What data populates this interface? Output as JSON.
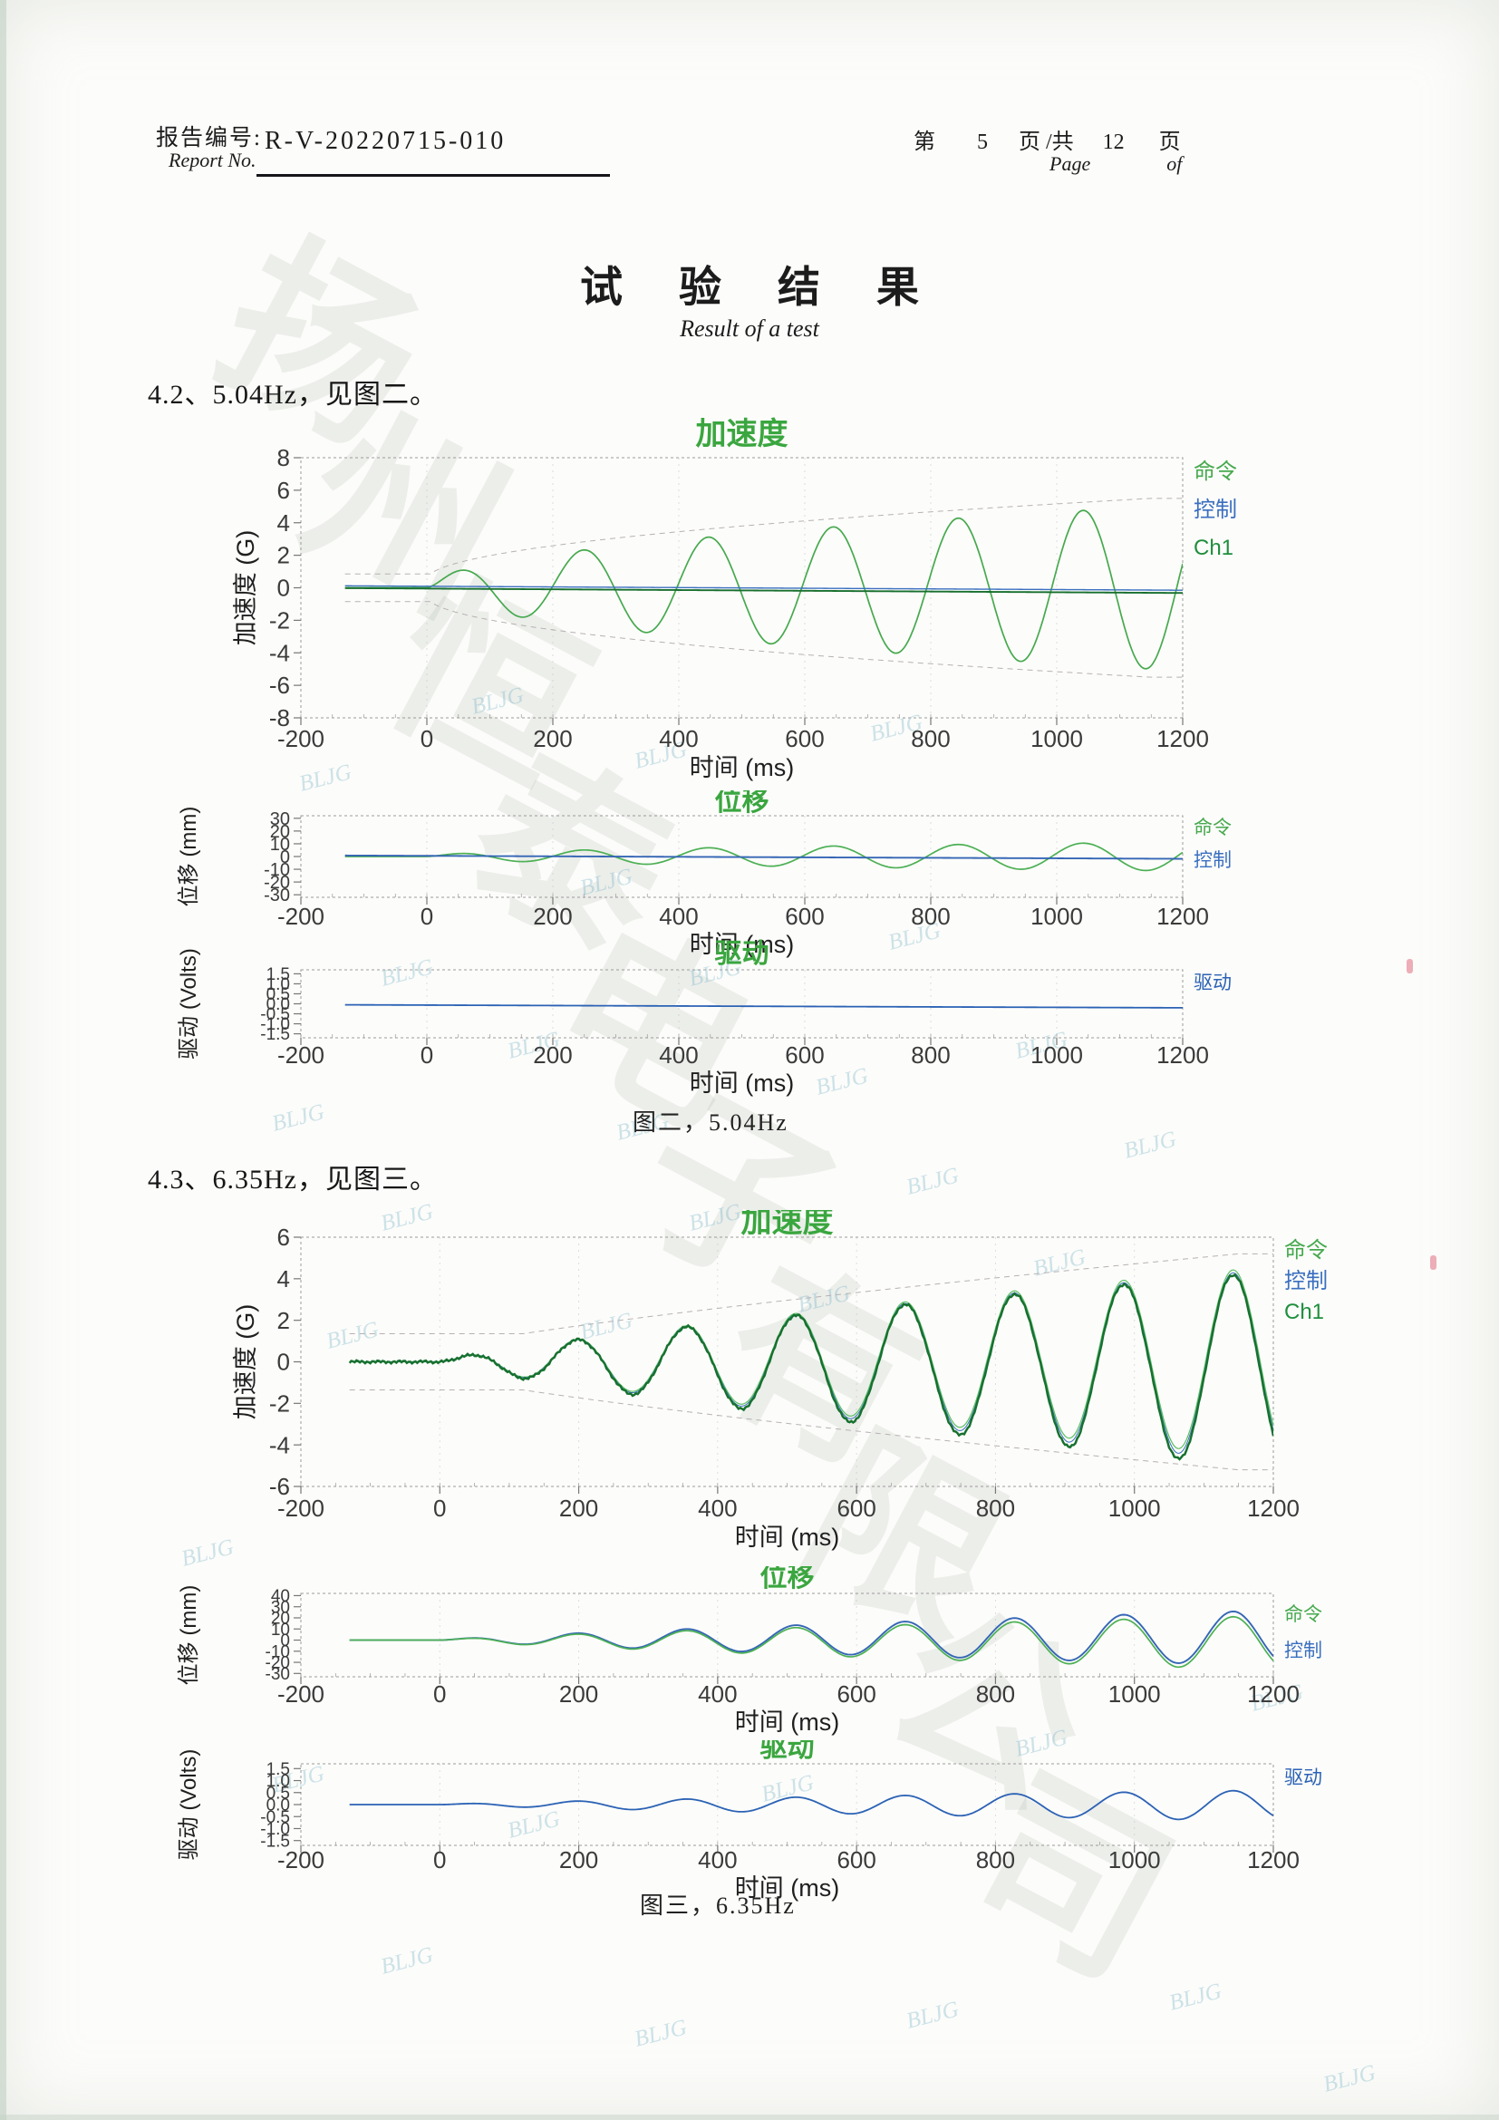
{
  "header": {
    "report_label_zh": "报告编号:",
    "report_label_en": "Report No.",
    "report_no": "R-V-20220715-010",
    "page_prefix": "第",
    "page_num": "5",
    "page_mid": "页 /共",
    "page_total": "12",
    "page_suffix": "页",
    "page_en_left": "Page",
    "page_en_right": "of"
  },
  "title": {
    "zh": "试验结果",
    "en": "Result of a test"
  },
  "sections": [
    {
      "text": "4.2、5.04Hz，见图二。"
    },
    {
      "text": "4.3、6.35Hz，见图三。"
    }
  ],
  "colors": {
    "title_green": "#3aa63f",
    "command_green": "#46a94e",
    "control_blue": "#3a6fc0",
    "ch1_green": "#1f8f3d",
    "drive_blue": "#2b62b5",
    "envelope_gray": "#b7b1b3",
    "axis_gray": "#9b9b9b",
    "tick_text": "#3b3b3b"
  },
  "watermark": {
    "company": "扬州恒泰电子有限公司",
    "stamp": "BLJG"
  },
  "figures": [
    {
      "caption": "图二，5.04Hz",
      "charts": [
        {
          "type": "line",
          "title": "加速度",
          "ylabel": "加速度 (G)",
          "xlabel": "时间 (ms)",
          "xlim": [
            -200,
            1200
          ],
          "ylim": [
            -8,
            8
          ],
          "xticks": [
            -200,
            0,
            200,
            400,
            600,
            800,
            1000,
            1200
          ],
          "yticks": [
            8,
            6,
            4,
            2,
            0,
            -2,
            -4,
            -6,
            -8
          ],
          "ytick_labels": [
            "8",
            "6",
            "4",
            "2",
            "0",
            "-2",
            "-4",
            "-6",
            "-8"
          ],
          "legend": [
            {
              "label": "命令",
              "color": "#46a94e"
            },
            {
              "label": "控制",
              "color": "#3a6fc0"
            },
            {
              "label": "Ch1",
              "color": "#1f8f3d"
            }
          ],
          "series": [
            {
              "name": "tolerance-upper",
              "color": "#b7b1b3",
              "width": 1,
              "dash": "6 5",
              "wave": {
                "kind": "env",
                "sign": 1,
                "min_amp": 0.85,
                "pad": 0.5,
                "amp_end": 5,
                "pow": 0.5,
                "freq": 5.04
              }
            },
            {
              "name": "tolerance-lower",
              "color": "#b7b1b3",
              "width": 1,
              "dash": "6 5",
              "wave": {
                "kind": "env",
                "sign": -1,
                "min_amp": 0.85,
                "pad": 0.5,
                "amp_end": 5,
                "pow": 0.5,
                "freq": 5.04
              }
            },
            {
              "name": "命令",
              "color": "#46a94e",
              "width": 1.7,
              "wave": {
                "kind": "sine",
                "freq": 5.04,
                "amp_end": 5.0,
                "pow": 0.5
              }
            },
            {
              "name": "控制",
              "color": "#3a6fc0",
              "width": 1.4,
              "wave": {
                "kind": "flat",
                "v0": 0.12,
                "v1": -0.15
              }
            },
            {
              "name": "Ch1",
              "color": "#176f2e",
              "width": 1.9,
              "wave": {
                "kind": "flat",
                "v0": -0.02,
                "v1": -0.32
              }
            }
          ]
        },
        {
          "type": "line",
          "title": "位移",
          "ylabel": "位移 (mm)",
          "xlabel": "时间 (ms)",
          "xlim": [
            -200,
            1200
          ],
          "ylim": [
            -32,
            32
          ],
          "xticks": [
            -200,
            0,
            200,
            400,
            600,
            800,
            1000,
            1200
          ],
          "yticks": [
            30,
            20,
            10,
            0,
            -10,
            -20,
            -30
          ],
          "ytick_labels": [
            "30",
            "20",
            "10",
            "0",
            "-10",
            "-20",
            "-30"
          ],
          "legend": [
            {
              "label": "命令",
              "color": "#46a94e"
            },
            {
              "label": "控制",
              "color": "#3a6fc0"
            }
          ],
          "series": [
            {
              "name": "命令",
              "color": "#4cb054",
              "width": 1.7,
              "wave": {
                "kind": "sine",
                "freq": 5.04,
                "amp_end": 11,
                "pow": 0.5
              }
            },
            {
              "name": "控制",
              "color": "#3566b5",
              "width": 1.9,
              "wave": {
                "kind": "flat",
                "v0": 0.8,
                "v1": -1.8
              }
            }
          ]
        },
        {
          "type": "line",
          "title": "驱动",
          "ylabel": "驱动 (Volts)",
          "xlabel": "时间 (ms)",
          "xlim": [
            -200,
            1200
          ],
          "ylim": [
            -1.7,
            1.7
          ],
          "xticks": [
            -200,
            0,
            200,
            400,
            600,
            800,
            1000,
            1200
          ],
          "yticks": [
            1.5,
            1.0,
            0.5,
            0.0,
            -0.5,
            -1.0,
            -1.5
          ],
          "ytick_labels": [
            "1.5",
            "1.0",
            "0.5",
            "0.0",
            "-0.5",
            "-1.0",
            "-1.5"
          ],
          "legend": [
            {
              "label": "驱动",
              "color": "#2b62b5"
            }
          ],
          "series": [
            {
              "name": "驱动",
              "color": "#2b62b5",
              "width": 1.8,
              "wave": {
                "kind": "flat",
                "v0": -0.05,
                "v1": -0.2
              }
            }
          ]
        }
      ]
    },
    {
      "caption": "图三，6.35Hz",
      "charts": [
        {
          "type": "line",
          "title": "加速度",
          "ylabel": "加速度 (G)",
          "xlabel": "时间 (ms)",
          "xlim": [
            -200,
            1200
          ],
          "ylim": [
            -6,
            6
          ],
          "xticks": [
            -200,
            0,
            200,
            400,
            600,
            800,
            1000,
            1200
          ],
          "yticks": [
            6,
            4,
            2,
            0,
            -2,
            -4,
            -6
          ],
          "ytick_labels": [
            "6",
            "4",
            "2",
            "0",
            "-2",
            "-4",
            "-6"
          ],
          "legend": [
            {
              "label": "命令",
              "color": "#46a94e"
            },
            {
              "label": "控制",
              "color": "#3a6fc0"
            },
            {
              "label": "Ch1",
              "color": "#1f8f3d"
            }
          ],
          "series": [
            {
              "name": "tolerance-upper",
              "color": "#b7b1b3",
              "width": 1,
              "dash": "6 5",
              "wave": {
                "kind": "env",
                "sign": 1,
                "min_amp": 1.35,
                "pad": 0.6,
                "amp_end": 4.6,
                "pow": 0.8,
                "freq": 6.35
              }
            },
            {
              "name": "tolerance-lower",
              "color": "#b7b1b3",
              "width": 1,
              "dash": "6 5",
              "wave": {
                "kind": "env",
                "sign": -1,
                "min_amp": 1.35,
                "pad": 0.6,
                "amp_end": 4.6,
                "pow": 0.8,
                "freq": 6.35
              }
            },
            {
              "name": "命令",
              "color": "#5cbf63",
              "width": 1.2,
              "wave": {
                "kind": "sine",
                "freq": 6.35,
                "amp_end": 4.45,
                "pow": 0.8
              }
            },
            {
              "name": "控制",
              "color": "#3a6fc0",
              "width": 1,
              "wave": {
                "kind": "sine",
                "freq": 6.35,
                "amp_end": 4.5,
                "pow": 0.8,
                "off_end": -0.2
              }
            },
            {
              "name": "Ch1",
              "color": "#17712f",
              "width": 2.5,
              "wave": {
                "kind": "sine",
                "freq": 6.35,
                "amp_end": 4.6,
                "pow": 0.8,
                "off_end": -0.4,
                "noise": 0.05
              }
            }
          ]
        },
        {
          "type": "line",
          "title": "位移",
          "ylabel": "位移 (mm)",
          "xlabel": "时间 (ms)",
          "xlim": [
            -200,
            1200
          ],
          "ylim": [
            -33,
            42
          ],
          "xticks": [
            -200,
            0,
            200,
            400,
            600,
            800,
            1000,
            1200
          ],
          "yticks": [
            40,
            30,
            20,
            10,
            0,
            -10,
            -20,
            -30
          ],
          "ytick_labels": [
            "40",
            "30",
            "20",
            "10",
            "0",
            "-10",
            "-20",
            "-30"
          ],
          "legend": [
            {
              "label": "命令",
              "color": "#46a94e"
            },
            {
              "label": "控制",
              "color": "#3a6fc0"
            }
          ],
          "series": [
            {
              "name": "控制",
              "color": "#3566b5",
              "width": 1.9,
              "wave": {
                "kind": "sine",
                "freq": 6.35,
                "amp_end": 24,
                "pow": 0.8,
                "off_end": 2
              }
            },
            {
              "name": "命令",
              "color": "#4cb054",
              "width": 1.7,
              "wave": {
                "kind": "sine",
                "freq": 6.35,
                "amp_end": 23.5,
                "pow": 0.8,
                "off_end": -2.5
              }
            }
          ]
        },
        {
          "type": "line",
          "title": "驱动",
          "ylabel": "驱动 (Volts)",
          "xlabel": "时间 (ms)",
          "xlim": [
            -200,
            1200
          ],
          "ylim": [
            -1.7,
            1.7
          ],
          "xticks": [
            -200,
            0,
            200,
            400,
            600,
            800,
            1000,
            1200
          ],
          "yticks": [
            1.5,
            1.0,
            0.5,
            0.0,
            -0.5,
            -1.0,
            -1.5
          ],
          "ytick_labels": [
            "1.5",
            "1.0",
            "0.5",
            "0.0",
            "-0.5",
            "-1.0",
            "-1.5"
          ],
          "legend": [
            {
              "label": "驱动",
              "color": "#2b62b5"
            }
          ],
          "series": [
            {
              "name": "驱动",
              "color": "#2b62b5",
              "width": 1.8,
              "wave": {
                "kind": "sine",
                "freq": 6.35,
                "amp_end": 0.62,
                "pow": 0.8,
                "off_end": -0.04
              }
            }
          ]
        }
      ]
    }
  ]
}
